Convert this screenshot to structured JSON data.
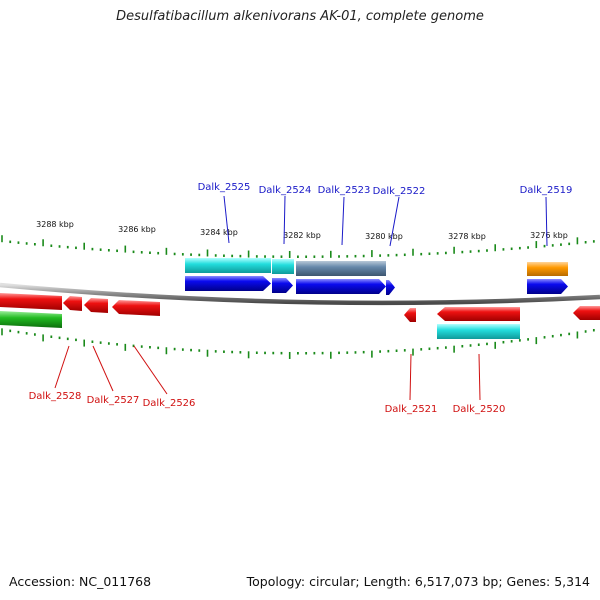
{
  "title": "Desulfatibacillum alkenivorans AK-01, complete genome",
  "footer": {
    "accession": "Accession: NC_011768",
    "topology": "Topology: circular; Length: 6,517,073 bp; Genes: 5,314"
  },
  "colors": {
    "backbone": "#8a8a8a",
    "tick": "#1a8a1a",
    "forward_label": "#1a1ac8",
    "reverse_label": "#d01010",
    "red_gene": "#ee1111",
    "blue_gene": "#0a0aee",
    "cyan_gene": "#22dddd",
    "green_gene": "#22bb22",
    "steel_gene": "#6688aa",
    "orange_gene": "#ff9900"
  },
  "scale_labels": [
    "3288 kbp",
    "3286 kbp",
    "3284 kbp",
    "3282 kbp",
    "3280 kbp",
    "3278 kbp",
    "3276 kbp"
  ],
  "genes_forward": [
    {
      "label": "Dalk_2525"
    },
    {
      "label": "Dalk_2524"
    },
    {
      "label": "Dalk_2523"
    },
    {
      "label": "Dalk_2522"
    },
    {
      "label": "Dalk_2519"
    }
  ],
  "genes_reverse": [
    {
      "label": "Dalk_2528"
    },
    {
      "label": "Dalk_2527"
    },
    {
      "label": "Dalk_2526"
    },
    {
      "label": "Dalk_2521"
    },
    {
      "label": "Dalk_2520"
    }
  ]
}
